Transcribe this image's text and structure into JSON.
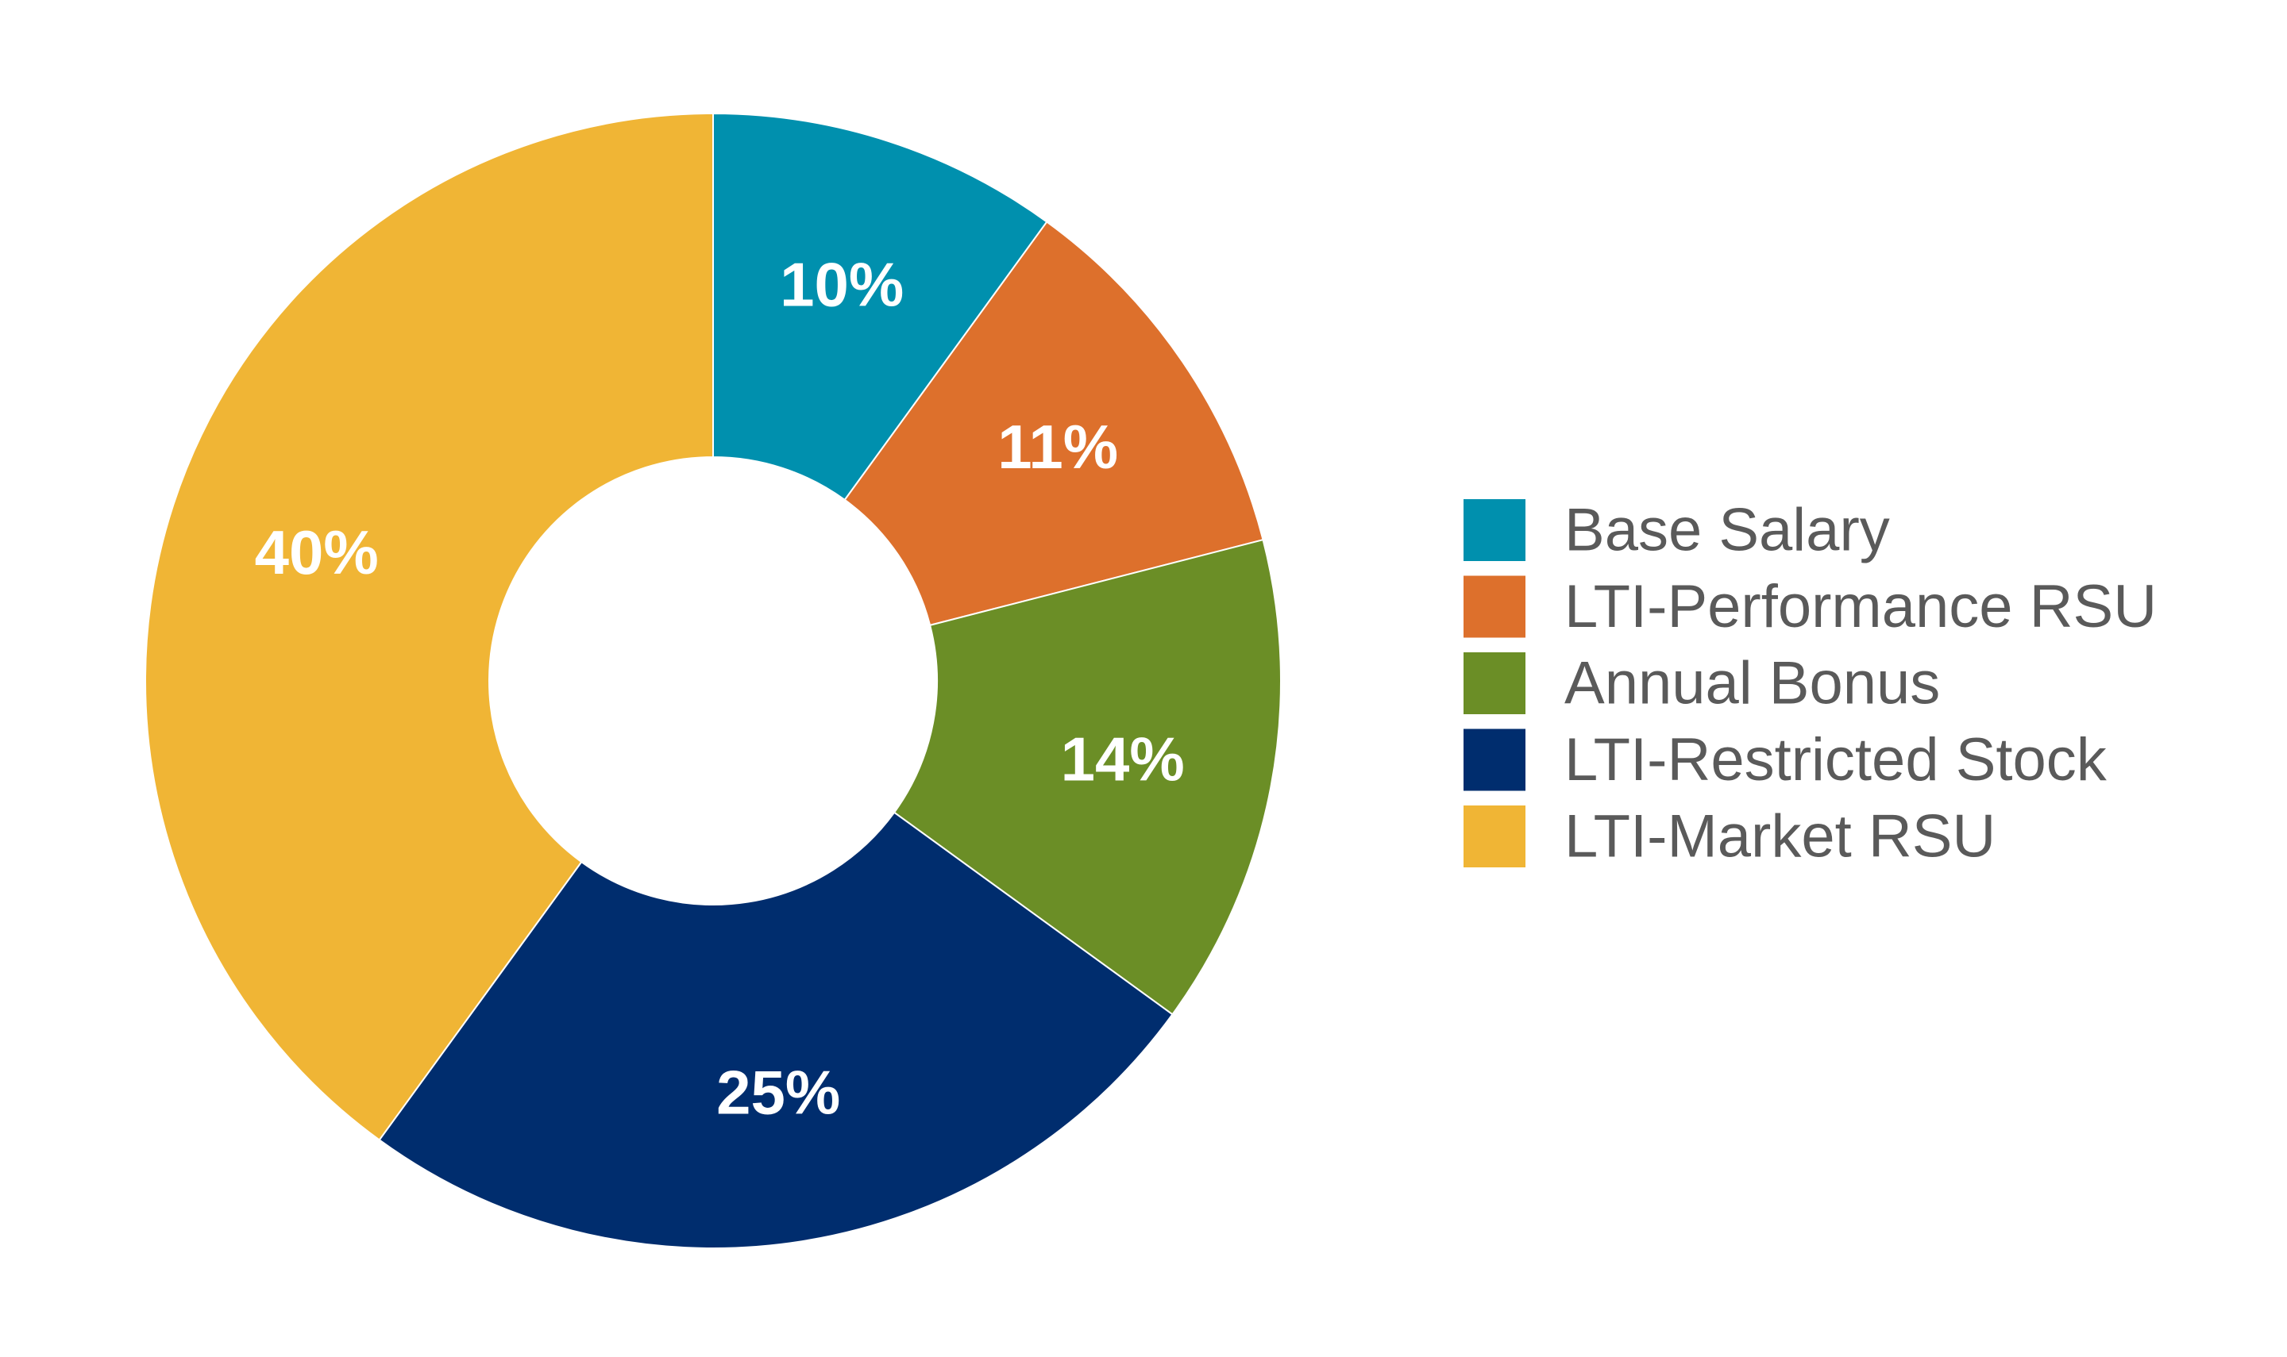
{
  "chart_data": {
    "type": "pie",
    "donut": true,
    "categories": [
      "Base Salary",
      "LTI-Performance RSU",
      "Annual Bonus",
      "LTI-Restricted Stock",
      "LTI-Market RSU"
    ],
    "values": [
      10,
      11,
      14,
      25,
      40
    ],
    "labels": [
      "10%",
      "11%",
      "14%",
      "25%",
      "40%"
    ],
    "colors": [
      "#0090ae",
      "#dd702c",
      "#6b8e26",
      "#002d6e",
      "#f0b535"
    ],
    "legend": "right",
    "title": ""
  }
}
